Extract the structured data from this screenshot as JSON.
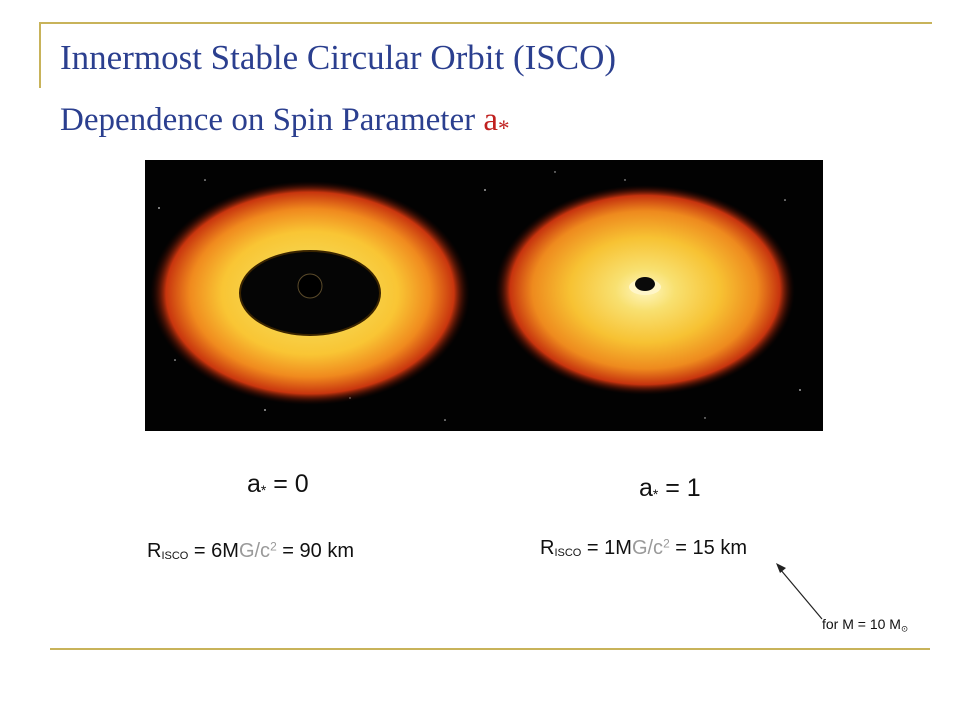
{
  "slide": {
    "title_line1": "Innermost Stable Circular Orbit (ISCO)",
    "title_line2_text": "Dependence on Spin Parameter ",
    "title_line2_symbol": "a",
    "title_line2_symbol_sub": "*",
    "left_caption": {
      "symbol": "a",
      "sub": "*",
      "rest": " = 0"
    },
    "right_caption": {
      "symbol": "a",
      "sub": "*",
      "rest": " = 1"
    },
    "left_formula": {
      "prefix": "R",
      "sub": "ISCO",
      "middle": " = 6M",
      "grey": "G/c",
      "sup": "2",
      "suffix": " = 90 km"
    },
    "right_formula": {
      "prefix": "R",
      "sub": "ISCO",
      "middle": " = 1M",
      "grey": "G/c",
      "sup": "2",
      "suffix": " = 15 km"
    },
    "footnote": {
      "text": "for M = 10 M",
      "sub": "⊙"
    },
    "colors": {
      "title": "#2b3f8f",
      "accent": "#c0201f",
      "rule": "#c8b35a",
      "grey_text": "#9a9a9a"
    }
  }
}
